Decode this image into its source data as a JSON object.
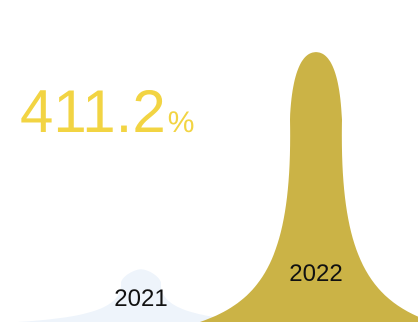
{
  "chart_data": {
    "type": "bar",
    "categories": [
      "2021",
      "2022"
    ],
    "values": [
      16.4,
      83.8
    ],
    "ylim": [
      0,
      100
    ],
    "series_colors": [
      "#eef4fb",
      "#cbb346"
    ]
  },
  "headline": {
    "value": "411.2",
    "unit": "%",
    "color": "#f2d443"
  }
}
